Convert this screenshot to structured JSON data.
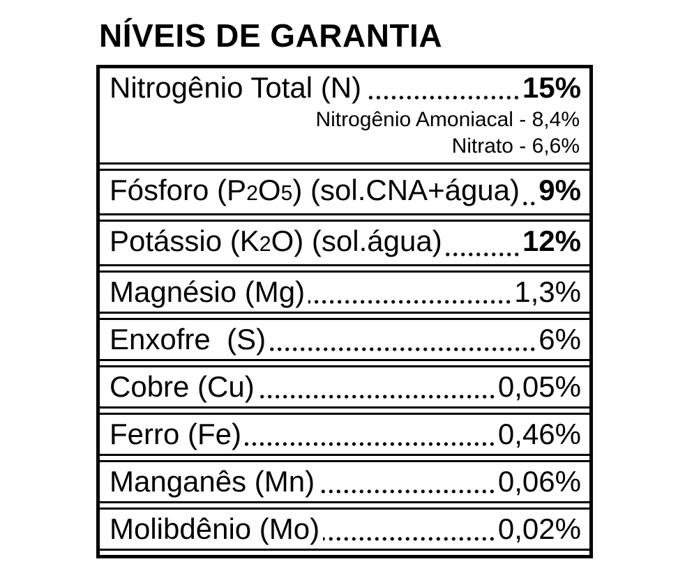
{
  "title": "NÍVEIS DE GARANTIA",
  "colors": {
    "text": "#000000",
    "background": "#ffffff",
    "border": "#000000"
  },
  "table": {
    "rows": [
      {
        "label": "Nitrogênio Total (N)",
        "value": "15%",
        "emphasis": true,
        "sublines": [
          "Nitrogênio Amoniacal - 8,4%",
          "Nitrato - 6,6%"
        ]
      },
      {
        "label_pre": "Fósforo (P",
        "sub1": "2",
        "label_mid": "O",
        "sub2": "5",
        "label_post": ") (sol.CNA+água)",
        "value": "9%",
        "emphasis": true
      },
      {
        "label_pre": "Potássio (K",
        "sub1": "2",
        "label_mid": "O) (sol.água)",
        "sub2": "",
        "label_post": "",
        "value": "12%",
        "emphasis": true
      },
      {
        "label": "Magnésio (Mg)",
        "value": "1,3%",
        "emphasis": false
      },
      {
        "label": "Enxofre  (S)",
        "value": "6%",
        "emphasis": false
      },
      {
        "label": "Cobre (Cu)",
        "value": "0,05%",
        "emphasis": false
      },
      {
        "label": "Ferro (Fe)",
        "value": "0,46%",
        "emphasis": false
      },
      {
        "label": "Manganês (Mn)",
        "value": "0,06%",
        "emphasis": false
      },
      {
        "label": "Molibdênio (Mo)",
        "value": "0,02%",
        "emphasis": false
      }
    ]
  }
}
